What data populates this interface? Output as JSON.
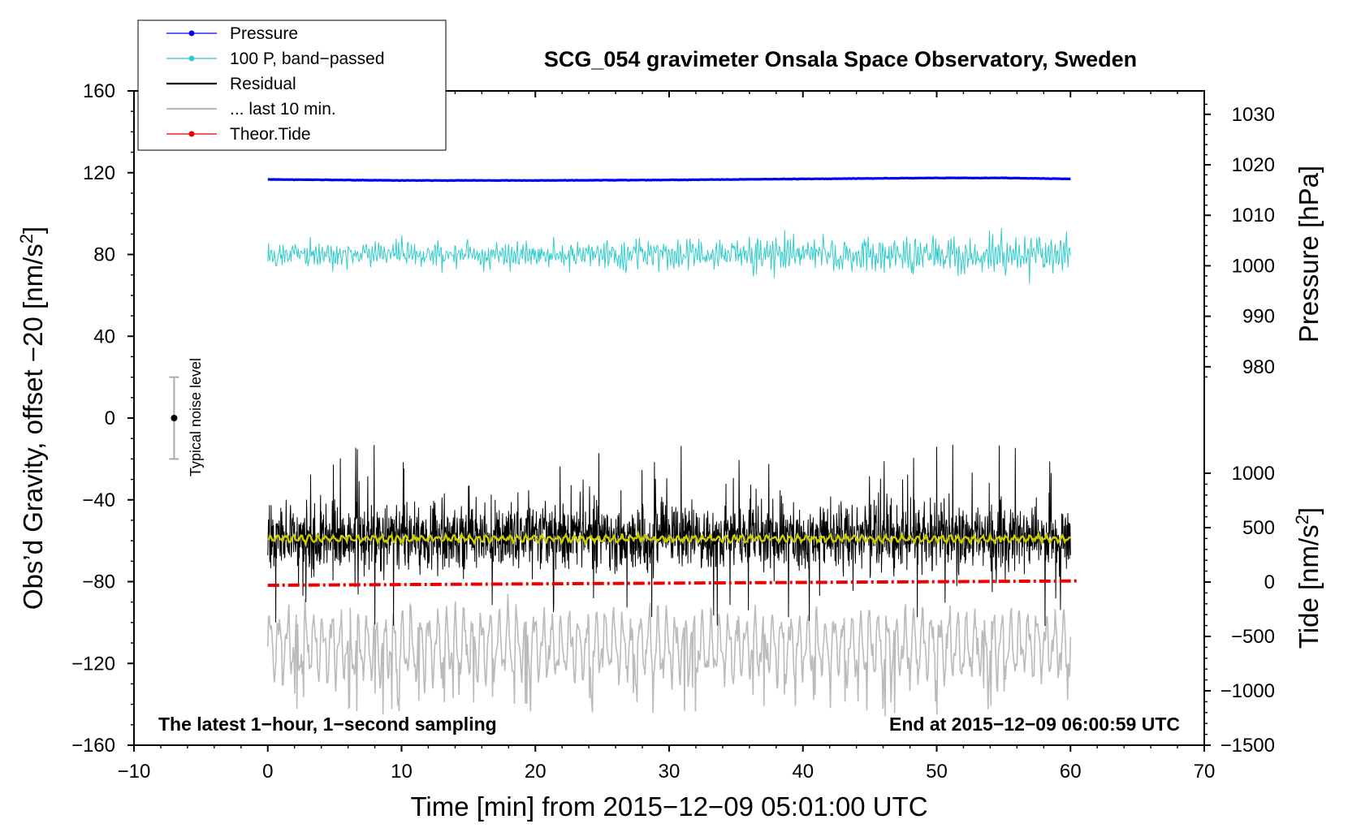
{
  "chart_data": {
    "type": "line",
    "title": "SCG_054 gravimeter Onsala Space Observatory, Sweden",
    "xlabel": "Time [min] from 2015−12−09 05:01:00 UTC",
    "ylabel_left": "Obs’d Gravity, offset −20 [nm/s",
    "ylabel_left_sup": "2",
    "ylabel_left_end": "]",
    "ylabel_right_top": "Pressure [hPa]",
    "ylabel_right_bottom": "Tide [nm/s",
    "ylabel_right_bottom_sup": "2",
    "ylabel_right_bottom_end": "]",
    "xlim": [
      -10,
      70
    ],
    "ylim_left": [
      -160,
      160
    ],
    "pressure_axis_range": [
      980,
      1030
    ],
    "tide_axis_range": [
      -1500,
      1000
    ],
    "x_ticks": [
      "−10",
      "0",
      "10",
      "20",
      "30",
      "40",
      "50",
      "60",
      "70"
    ],
    "x_tick_values": [
      -10,
      0,
      10,
      20,
      30,
      40,
      50,
      60,
      70
    ],
    "y_left_ticks": [
      "160",
      "120",
      "80",
      "40",
      "0",
      "−40",
      "−80",
      "−120",
      "−160"
    ],
    "y_left_tick_values": [
      160,
      120,
      80,
      40,
      0,
      -40,
      -80,
      -120,
      -160
    ],
    "pressure_ticks": [
      "1030",
      "1020",
      "1010",
      "1000",
      "990",
      "980"
    ],
    "pressure_tick_values": [
      1030,
      1020,
      1010,
      1000,
      990,
      980
    ],
    "tide_ticks": [
      "1000",
      "500",
      "0",
      "−500",
      "−1000",
      "−1500"
    ],
    "tide_tick_values": [
      1000,
      500,
      0,
      -500,
      -1000,
      -1500
    ],
    "annotation_left": "The latest 1−hour, 1−second sampling",
    "annotation_right": "End at 2015−12−09 06:00:59 UTC",
    "noise_label": "Typical noise level",
    "noise_bar": {
      "x": -7,
      "y": 0,
      "half_range": 20
    },
    "legend": [
      {
        "label": "Pressure",
        "color": "#0000ee",
        "marker": true
      },
      {
        "label": "100 P, band−passed",
        "color": "#33cccc",
        "marker": true
      },
      {
        "label": "Residual",
        "color": "#000000",
        "marker": false
      },
      {
        "label": "... last 10 min.",
        "color": "#bbbbbb",
        "marker": false
      },
      {
        "label": "Theor.Tide",
        "color": "#ee0000",
        "marker": true
      }
    ],
    "series": [
      {
        "name": "Pressure",
        "axis": "pressure",
        "color": "#0000ee",
        "x_range": [
          0,
          60
        ],
        "x": [
          0,
          10,
          20,
          30,
          40,
          50,
          55,
          60
        ],
        "y": [
          1017.1,
          1016.9,
          1016.9,
          1017.0,
          1017.2,
          1017.4,
          1017.4,
          1017.2
        ]
      },
      {
        "name": "100 P, band−passed",
        "axis": "left",
        "color": "#33cccc",
        "x_range": [
          0,
          60
        ],
        "baseline_y": [
          80,
          80
        ],
        "amplitude": [
          5,
          8
        ]
      },
      {
        "name": "Residual",
        "axis": "left",
        "color": "#000000",
        "x_range": [
          0,
          60
        ],
        "mean_y": -58,
        "typical_high": -35,
        "typical_low": -95,
        "max": -12,
        "min": -103
      },
      {
        "name": "... last 10 min.",
        "axis": "left",
        "color": "#bbbbbb",
        "x_range": [
          0,
          60
        ],
        "upper_y": -93,
        "lower_y": -130,
        "min": -146
      },
      {
        "name": "smoothed residual",
        "axis": "left",
        "color": "#cccc00",
        "x_range": [
          0,
          60
        ],
        "mean_y": -59
      },
      {
        "name": "Theor.Tide",
        "axis": "tide",
        "color": "#ee0000",
        "x": [
          0,
          60.5
        ],
        "y": [
          -30,
          10
        ]
      }
    ]
  }
}
